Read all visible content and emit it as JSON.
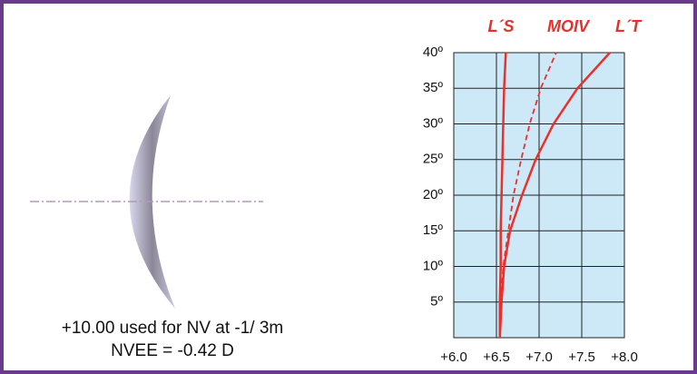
{
  "chart_data": {
    "type": "line",
    "orientation": "vertical",
    "x": [
      0,
      5,
      10,
      15,
      20,
      25,
      30,
      35,
      40
    ],
    "series": [
      {
        "name": "L´S",
        "color": "#e8302c",
        "dashed": false,
        "values": [
          6.54,
          6.54,
          6.55,
          6.55,
          6.56,
          6.57,
          6.58,
          6.59,
          6.61
        ]
      },
      {
        "name": "MOIV",
        "color": "#e8302c",
        "dashed": true,
        "values": [
          6.54,
          6.55,
          6.58,
          6.64,
          6.7,
          6.79,
          6.89,
          7.02,
          7.2
        ]
      },
      {
        "name": "L´T",
        "color": "#e8302c",
        "dashed": false,
        "values": [
          6.54,
          6.56,
          6.59,
          6.66,
          6.8,
          6.96,
          7.17,
          7.45,
          7.83
        ]
      }
    ],
    "ylim": [
      6.0,
      8.0
    ],
    "yticks": [
      {
        "value": 6.0,
        "label": "+6.0"
      },
      {
        "value": 6.5,
        "label": "+6.5"
      },
      {
        "value": 7.0,
        "label": "+7.0"
      },
      {
        "value": 7.5,
        "label": "+7.5"
      },
      {
        "value": 8.0,
        "label": "+8.0"
      }
    ],
    "xlim": [
      0,
      40
    ],
    "xticks": [
      {
        "value": 5,
        "label": "5º"
      },
      {
        "value": 10,
        "label": "10º"
      },
      {
        "value": 15,
        "label": "15º"
      },
      {
        "value": 20,
        "label": "20º"
      },
      {
        "value": 25,
        "label": "25º"
      },
      {
        "value": 30,
        "label": "30º"
      },
      {
        "value": 35,
        "label": "35º"
      },
      {
        "value": 40,
        "label": "40º"
      }
    ],
    "grid": true,
    "background": "#cde9f7",
    "annotations": [
      "+10.00 used for NV at -1/ 3m",
      "NVEE = -0.42 D"
    ]
  }
}
